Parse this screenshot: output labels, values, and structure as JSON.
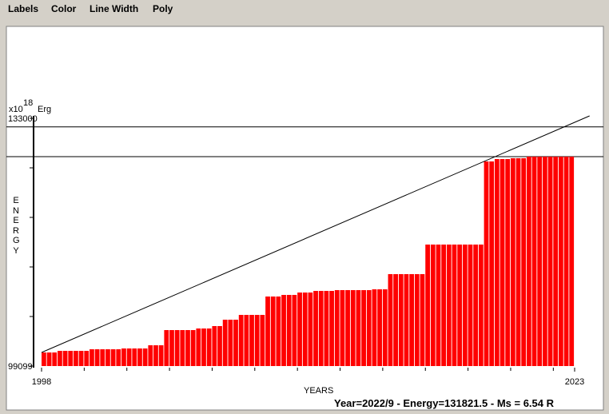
{
  "menu": [
    "Labels",
    "Color",
    "Line Width",
    "Poly"
  ],
  "status": "Year=2022/9 - Energy=131821.5 - Ms = 6.54 R",
  "chart_data": {
    "type": "bar",
    "y_unit": {
      "base": "x10",
      "exponent": "18",
      "unit": "Erg"
    },
    "y_label": "ENERGY",
    "x_label": "YEARS",
    "xlim": [
      1998,
      2023
    ],
    "xticks": [
      1998,
      2023
    ],
    "xminor": [
      2000,
      2002,
      2004,
      2006,
      2008,
      2010,
      2012,
      2014,
      2016,
      2018,
      2020,
      2022
    ],
    "ylim": [
      99099,
      133000
    ],
    "yticks": [
      99099,
      133000
    ],
    "yminor": [
      105879.2,
      112659.4,
      119439.6,
      126219.8
    ],
    "color": "#ff0000",
    "x": [
      1998,
      1998.25,
      1998.5,
      1998.75,
      1999,
      1999.25,
      1999.5,
      1999.75,
      2000,
      2000.25,
      2000.5,
      2000.75,
      2001,
      2001.25,
      2001.5,
      2001.75,
      2002,
      2002.25,
      2002.5,
      2002.75,
      2003,
      2003.25,
      2003.5,
      2003.75,
      2004,
      2004.25,
      2004.5,
      2004.75,
      2005,
      2005.25,
      2005.5,
      2005.75,
      2006,
      2006.25,
      2006.5,
      2006.75,
      2007,
      2007.25,
      2007.5,
      2007.75,
      2008,
      2008.25,
      2008.5,
      2008.75,
      2009,
      2009.25,
      2009.5,
      2009.75,
      2010,
      2010.25,
      2010.5,
      2010.75,
      2011,
      2011.25,
      2011.5,
      2011.75,
      2012,
      2012.25,
      2012.5,
      2012.75,
      2013,
      2013.25,
      2013.5,
      2013.75,
      2014,
      2014.25,
      2014.5,
      2014.75,
      2015,
      2015.25,
      2015.5,
      2015.75,
      2016,
      2016.25,
      2016.5,
      2016.75,
      2017,
      2017.25,
      2017.5,
      2017.75,
      2018,
      2018.25,
      2018.5,
      2018.75,
      2019,
      2019.25,
      2019.5,
      2019.75,
      2020,
      2020.25,
      2020.5,
      2020.75,
      2021,
      2021.25,
      2021.5,
      2021.75,
      2022,
      2022.25,
      2022.5,
      2022.75
    ],
    "values": [
      100958,
      100958,
      100958,
      101177,
      101177,
      101177,
      101177,
      101177,
      101177,
      101396,
      101396,
      101396,
      101396,
      101396,
      101396,
      101505,
      101505,
      101505,
      101505,
      101505,
      101942,
      101942,
      101942,
      104020,
      104020,
      104020,
      104020,
      104020,
      104020,
      104239,
      104239,
      104239,
      104567,
      104567,
      105442,
      105442,
      105442,
      106098,
      106098,
      106098,
      106098,
      106098,
      108613,
      108613,
      108613,
      108832,
      108832,
      108832,
      109160,
      109160,
      109160,
      109379,
      109379,
      109379,
      109379,
      109488,
      109488,
      109488,
      109488,
      109488,
      109488,
      109488,
      109597,
      109597,
      109597,
      111677,
      111677,
      111677,
      111677,
      111677,
      111677,
      111677,
      115722,
      115722,
      115722,
      115722,
      115722,
      115722,
      115722,
      115722,
      115722,
      115722,
      115722,
      127095,
      127095,
      127423,
      127423,
      127423,
      127533,
      127533,
      127533,
      127752,
      127752,
      127752,
      127752,
      127752,
      127752,
      127752,
      127752,
      127752
    ],
    "trend": {
      "x": [
        1998,
        2023.7
      ],
      "values": [
        100958,
        133330
      ]
    },
    "hlines": [
      131821.5,
      127752
    ]
  }
}
